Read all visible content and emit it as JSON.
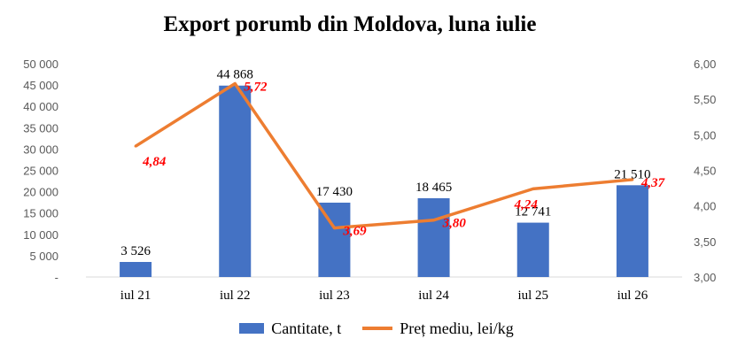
{
  "chart_data": {
    "type": "bar",
    "title": "Export porumb din Moldova, luna iulie",
    "categories": [
      "iul 21",
      "iul 22",
      "iul 23",
      "iul 24",
      "iul 25",
      "iul 26"
    ],
    "series": [
      {
        "name": "Cantitate, t",
        "type": "bar",
        "axis": "left",
        "color": "#4472C4",
        "values": [
          3526,
          44868,
          17430,
          18465,
          12741,
          21510
        ],
        "labels": [
          "3 526",
          "44 868",
          "17 430",
          "18 465",
          "12 741",
          "21 510"
        ]
      },
      {
        "name": "Preț mediu, lei/kg",
        "type": "line",
        "axis": "right",
        "color": "#ED7D31",
        "label_color": "#FF0000",
        "values": [
          4.84,
          5.72,
          3.69,
          3.8,
          4.24,
          4.37
        ],
        "labels": [
          "4,84",
          "5,72",
          "3,69",
          "3,80",
          "4,24",
          "4,37"
        ]
      }
    ],
    "y_left": {
      "min": 0,
      "max": 50000,
      "ticks": [
        0,
        5000,
        10000,
        15000,
        20000,
        25000,
        30000,
        35000,
        40000,
        45000,
        50000
      ],
      "tick_labels": [
        "-",
        "5 000",
        "10 000",
        "15 000",
        "20 000",
        "25 000",
        "30 000",
        "35 000",
        "40 000",
        "45 000",
        "50 000"
      ]
    },
    "y_right": {
      "min": 3.0,
      "max": 6.0,
      "ticks": [
        3.0,
        3.5,
        4.0,
        4.5,
        5.0,
        5.5,
        6.0
      ],
      "tick_labels": [
        "3,00",
        "3,50",
        "4,00",
        "4,50",
        "5,00",
        "5,50",
        "6,00"
      ]
    },
    "grid": false,
    "legend_position": "bottom"
  }
}
